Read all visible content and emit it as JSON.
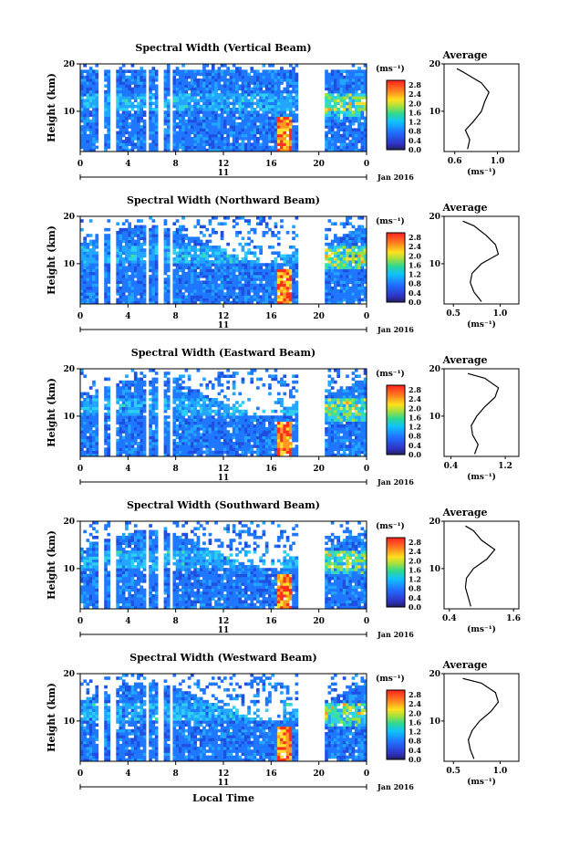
{
  "figure": {
    "xlabel": "Local Time",
    "date_label": "Jan 2016",
    "day_label": "11",
    "ylabel": "Height (km)",
    "unit_label": "(ms⁻¹)",
    "average_title": "Average"
  },
  "chart_data": [
    {
      "type": "heatmap",
      "title": "Spectral Width (Vertical Beam)",
      "x_ticks": [
        "0",
        "4",
        "8",
        "12",
        "16",
        "20",
        "0"
      ],
      "y_ticks": [
        "20",
        "10"
      ],
      "xlim": [
        0,
        24
      ],
      "ylim": [
        1.5,
        20
      ],
      "colorbar_ticks": [
        "2.8",
        "2.4",
        "2.0",
        "1.6",
        "1.2",
        "0.8",
        "0.4",
        "0.0"
      ],
      "colorbar_range": [
        0,
        3.0
      ],
      "profile": {
        "title": "Average",
        "x_ticks": [
          "0.6",
          "1.0"
        ],
        "xlim": [
          0.5,
          1.2
        ],
        "y_ticks": [
          "20",
          "10"
        ],
        "ylim": [
          1.5,
          20
        ],
        "heights": [
          2,
          4,
          6,
          8,
          10,
          12,
          14,
          16,
          18,
          19
        ],
        "values": [
          0.72,
          0.74,
          0.7,
          0.78,
          0.85,
          0.88,
          0.92,
          0.85,
          0.7,
          0.62
        ]
      }
    },
    {
      "type": "heatmap",
      "title": "Spectral Width (Northward Beam)",
      "x_ticks": [
        "0",
        "4",
        "8",
        "12",
        "16",
        "20",
        "0"
      ],
      "y_ticks": [
        "20",
        "10"
      ],
      "xlim": [
        0,
        24
      ],
      "ylim": [
        1.5,
        20
      ],
      "colorbar_ticks": [
        "2.8",
        "2.4",
        "2.0",
        "1.6",
        "1.2",
        "0.8",
        "0.4",
        "0.0"
      ],
      "colorbar_range": [
        0,
        3.0
      ],
      "profile": {
        "title": "Average",
        "x_ticks": [
          "0.5",
          "1.0"
        ],
        "xlim": [
          0.4,
          1.2
        ],
        "y_ticks": [
          "20",
          "10"
        ],
        "ylim": [
          1.5,
          20
        ],
        "heights": [
          2,
          4,
          6,
          8,
          10,
          12,
          14,
          16,
          18,
          19
        ],
        "values": [
          0.8,
          0.72,
          0.68,
          0.7,
          0.8,
          0.98,
          0.95,
          0.85,
          0.72,
          0.6
        ]
      }
    },
    {
      "type": "heatmap",
      "title": "Spectral Width (Eastward Beam)",
      "x_ticks": [
        "0",
        "4",
        "8",
        "12",
        "16",
        "20",
        "0"
      ],
      "y_ticks": [
        "20",
        "10"
      ],
      "xlim": [
        0,
        24
      ],
      "ylim": [
        1.5,
        20
      ],
      "colorbar_ticks": [
        "2.8",
        "2.4",
        "2.0",
        "1.6",
        "1.2",
        "0.8",
        "0.4",
        "0.0"
      ],
      "colorbar_range": [
        0,
        3.0
      ],
      "profile": {
        "title": "Average",
        "x_ticks": [
          "0.4",
          "1.2"
        ],
        "xlim": [
          0.3,
          1.4
        ],
        "y_ticks": [
          "20",
          "10"
        ],
        "ylim": [
          1.5,
          20
        ],
        "heights": [
          2,
          4,
          6,
          8,
          10,
          12,
          14,
          16,
          18,
          19
        ],
        "values": [
          0.75,
          0.8,
          0.72,
          0.7,
          0.78,
          0.9,
          1.05,
          1.1,
          0.9,
          0.65
        ]
      }
    },
    {
      "type": "heatmap",
      "title": "Spectral Width (Southward Beam)",
      "x_ticks": [
        "0",
        "4",
        "8",
        "12",
        "16",
        "20",
        "0"
      ],
      "y_ticks": [
        "20",
        "10"
      ],
      "xlim": [
        0,
        24
      ],
      "ylim": [
        1.5,
        20
      ],
      "colorbar_ticks": [
        "2.8",
        "2.4",
        "2.0",
        "1.6",
        "1.2",
        "0.8",
        "0.4",
        "0.0"
      ],
      "colorbar_range": [
        0,
        3.0
      ],
      "profile": {
        "title": "Average",
        "x_ticks": [
          "0.4",
          "1.6"
        ],
        "xlim": [
          0.3,
          1.7
        ],
        "y_ticks": [
          "20",
          "10"
        ],
        "ylim": [
          1.5,
          20
        ],
        "heights": [
          2,
          4,
          6,
          8,
          10,
          12,
          14,
          16,
          18,
          19
        ],
        "values": [
          0.8,
          0.75,
          0.7,
          0.72,
          0.85,
          1.1,
          1.25,
          1.0,
          0.85,
          0.7
        ]
      }
    },
    {
      "type": "heatmap",
      "title": "Spectral Width (Westward Beam)",
      "x_ticks": [
        "0",
        "4",
        "8",
        "12",
        "16",
        "20",
        "0"
      ],
      "y_ticks": [
        "20",
        "10"
      ],
      "xlim": [
        0,
        24
      ],
      "ylim": [
        1.5,
        20
      ],
      "colorbar_ticks": [
        "2.8",
        "2.4",
        "2.0",
        "1.6",
        "1.2",
        "0.8",
        "0.4",
        "0.0"
      ],
      "colorbar_range": [
        0,
        3.0
      ],
      "profile": {
        "title": "Average",
        "x_ticks": [
          "0.5",
          "1.0"
        ],
        "xlim": [
          0.4,
          1.2
        ],
        "y_ticks": [
          "20",
          "10"
        ],
        "ylim": [
          1.5,
          20
        ],
        "heights": [
          2,
          4,
          6,
          8,
          10,
          12,
          14,
          16,
          18,
          19
        ],
        "values": [
          0.72,
          0.68,
          0.66,
          0.7,
          0.78,
          0.9,
          0.98,
          0.95,
          0.8,
          0.6
        ]
      }
    }
  ]
}
